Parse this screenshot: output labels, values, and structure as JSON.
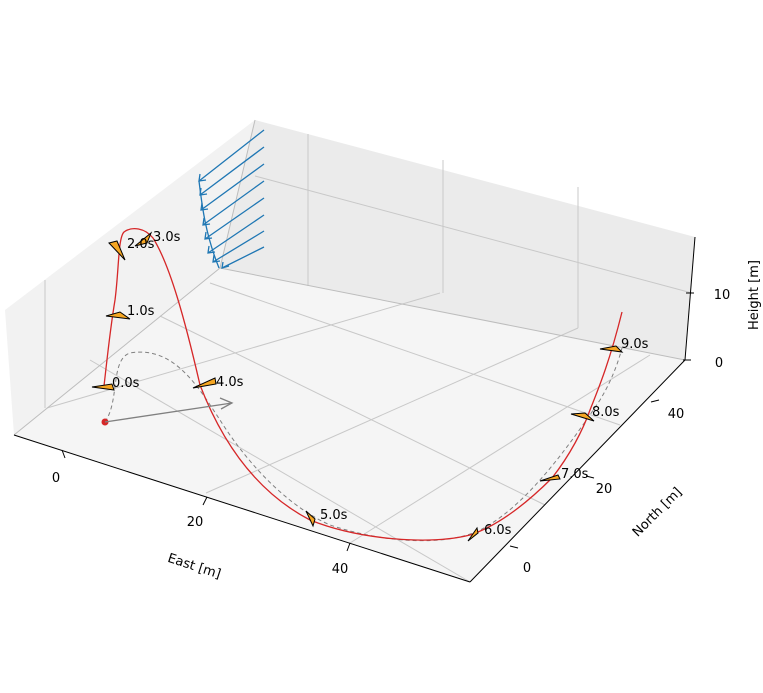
{
  "chart_data": {
    "type": "3d-line",
    "axes": {
      "x": {
        "label": "East [m]",
        "ticks": [
          0,
          20,
          40
        ]
      },
      "y": {
        "label": "North [m]",
        "ticks": [
          0,
          20,
          40
        ]
      },
      "z": {
        "label": "Height [m]",
        "ticks": [
          0,
          10
        ]
      }
    },
    "grid": true,
    "series": [
      {
        "role": "flight-path",
        "color": "#d62728",
        "style": "solid"
      },
      {
        "role": "ground-track",
        "color": "#808080",
        "style": "dashed"
      },
      {
        "role": "wind-profile",
        "color": "#1f77b4",
        "style": "arrows"
      }
    ],
    "time_markers": [
      {
        "label": "0.0s"
      },
      {
        "label": "1.0s"
      },
      {
        "label": "2.0s"
      },
      {
        "label": "3.0s"
      },
      {
        "label": "4.0s"
      },
      {
        "label": "5.0s"
      },
      {
        "label": "6.0s"
      },
      {
        "label": "7.0s"
      },
      {
        "label": "8.0s"
      },
      {
        "label": "9.0s"
      }
    ],
    "marker_color": "#f5a623",
    "launch_point_color": "#d62728",
    "direction_arrow_color": "#808080"
  }
}
